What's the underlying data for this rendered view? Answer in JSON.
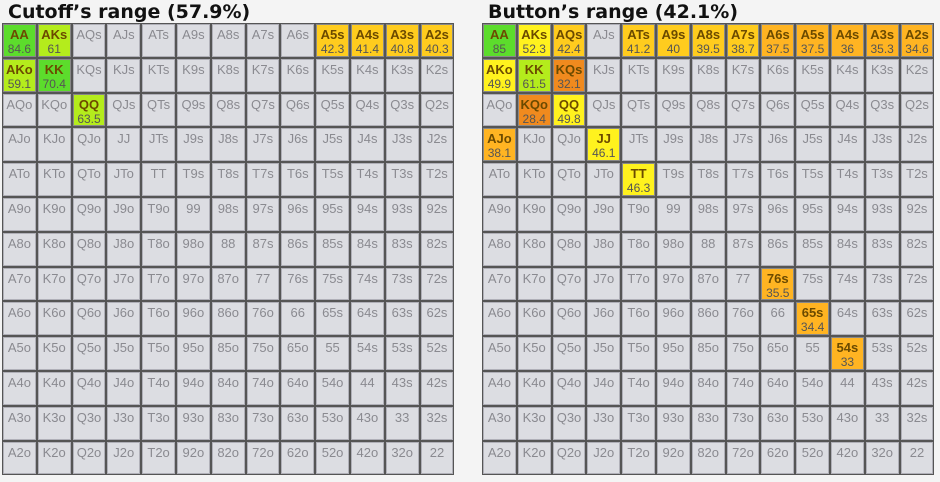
{
  "hands": [
    [
      "AA",
      "AKs",
      "AQs",
      "AJs",
      "ATs",
      "A9s",
      "A8s",
      "A7s",
      "A6s",
      "A5s",
      "A4s",
      "A3s",
      "A2s"
    ],
    [
      "AKo",
      "KK",
      "KQs",
      "KJs",
      "KTs",
      "K9s",
      "K8s",
      "K7s",
      "K6s",
      "K5s",
      "K4s",
      "K3s",
      "K2s"
    ],
    [
      "AQo",
      "KQo",
      "QQ",
      "QJs",
      "QTs",
      "Q9s",
      "Q8s",
      "Q7s",
      "Q6s",
      "Q5s",
      "Q4s",
      "Q3s",
      "Q2s"
    ],
    [
      "AJo",
      "KJo",
      "QJo",
      "JJ",
      "JTs",
      "J9s",
      "J8s",
      "J7s",
      "J6s",
      "J5s",
      "J4s",
      "J3s",
      "J2s"
    ],
    [
      "ATo",
      "KTo",
      "QTo",
      "JTo",
      "TT",
      "T9s",
      "T8s",
      "T7s",
      "T6s",
      "T5s",
      "T4s",
      "T3s",
      "T2s"
    ],
    [
      "A9o",
      "K9o",
      "Q9o",
      "J9o",
      "T9o",
      "99",
      "98s",
      "97s",
      "96s",
      "95s",
      "94s",
      "93s",
      "92s"
    ],
    [
      "A8o",
      "K8o",
      "Q8o",
      "J8o",
      "T8o",
      "98o",
      "88",
      "87s",
      "86s",
      "85s",
      "84s",
      "83s",
      "82s"
    ],
    [
      "A7o",
      "K7o",
      "Q7o",
      "J7o",
      "T7o",
      "97o",
      "87o",
      "77",
      "76s",
      "75s",
      "74s",
      "73s",
      "72s"
    ],
    [
      "A6o",
      "K6o",
      "Q6o",
      "J6o",
      "T6o",
      "96o",
      "86o",
      "76o",
      "66",
      "65s",
      "64s",
      "63s",
      "62s"
    ],
    [
      "A5o",
      "K5o",
      "Q5o",
      "J5o",
      "T5o",
      "95o",
      "85o",
      "75o",
      "65o",
      "55",
      "54s",
      "53s",
      "52s"
    ],
    [
      "A4o",
      "K4o",
      "Q4o",
      "J4o",
      "T4o",
      "94o",
      "84o",
      "74o",
      "64o",
      "54o",
      "44",
      "43s",
      "42s"
    ],
    [
      "A3o",
      "K3o",
      "Q3o",
      "J3o",
      "T3o",
      "93o",
      "83o",
      "73o",
      "63o",
      "53o",
      "43o",
      "33",
      "32s"
    ],
    [
      "A2o",
      "K2o",
      "Q2o",
      "J2o",
      "T2o",
      "92o",
      "82o",
      "72o",
      "62o",
      "52o",
      "42o",
      "32o",
      "22"
    ]
  ],
  "colors": {
    "green": "#5cdc2c",
    "lime": "#b4ec1c",
    "yellow": "#fff21e",
    "gold": "#ffcc1e",
    "orange": "#ffb422",
    "darkorange": "#f08a1e"
  },
  "panels": [
    {
      "title": "Cutoff’s range (57.9%)",
      "highlights": {
        "AA": {
          "value": "84.6",
          "color": "green"
        },
        "AKs": {
          "value": "61",
          "color": "lime"
        },
        "AKo": {
          "value": "59.1",
          "color": "lime"
        },
        "KK": {
          "value": "70.4",
          "color": "green"
        },
        "QQ": {
          "value": "63.5",
          "color": "lime"
        },
        "A5s": {
          "value": "42.3",
          "color": "gold"
        },
        "A4s": {
          "value": "41.4",
          "color": "gold"
        },
        "A3s": {
          "value": "40.8",
          "color": "gold"
        },
        "A2s": {
          "value": "40.3",
          "color": "gold"
        }
      }
    },
    {
      "title": "Button’s range (42.1%)",
      "highlights": {
        "AA": {
          "value": "85",
          "color": "green"
        },
        "AKs": {
          "value": "52.3",
          "color": "yellow"
        },
        "AQs": {
          "value": "42.4",
          "color": "gold"
        },
        "ATs": {
          "value": "41.2",
          "color": "gold"
        },
        "A9s": {
          "value": "40",
          "color": "gold"
        },
        "A8s": {
          "value": "39.5",
          "color": "gold"
        },
        "A7s": {
          "value": "38.7",
          "color": "gold"
        },
        "A6s": {
          "value": "37.5",
          "color": "orange"
        },
        "A5s": {
          "value": "37.5",
          "color": "orange"
        },
        "A4s": {
          "value": "36",
          "color": "orange"
        },
        "A3s": {
          "value": "35.3",
          "color": "orange"
        },
        "A2s": {
          "value": "34.6",
          "color": "orange"
        },
        "AKo": {
          "value": "49.9",
          "color": "yellow"
        },
        "KK": {
          "value": "61.5",
          "color": "lime"
        },
        "KQs": {
          "value": "32.1",
          "color": "darkorange"
        },
        "KQo": {
          "value": "28.4",
          "color": "darkorange"
        },
        "QQ": {
          "value": "49.8",
          "color": "yellow"
        },
        "AJo": {
          "value": "38.1",
          "color": "orange"
        },
        "JJ": {
          "value": "46.1",
          "color": "yellow"
        },
        "TT": {
          "value": "46.3",
          "color": "yellow"
        },
        "76s": {
          "value": "35.5",
          "color": "orange"
        },
        "65s": {
          "value": "34.4",
          "color": "orange"
        },
        "54s": {
          "value": "33",
          "color": "orange"
        }
      }
    }
  ]
}
